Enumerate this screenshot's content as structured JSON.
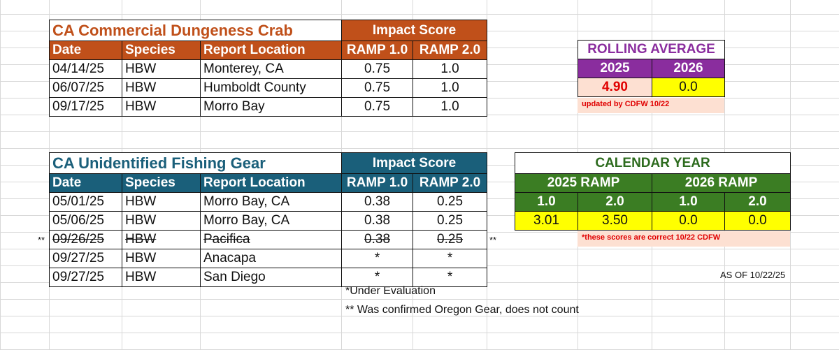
{
  "crab": {
    "title": "CA Commercial Dungeness Crab",
    "impact_label": "Impact Score",
    "headers": [
      "Date",
      "Species",
      "Report Location",
      "RAMP 1.0",
      "RAMP 2.0"
    ],
    "rows": [
      [
        "04/14/25",
        "HBW",
        "Monterey, CA",
        "0.75",
        "1.0"
      ],
      [
        "06/07/25",
        "HBW",
        "Humboldt County",
        "0.75",
        "1.0"
      ],
      [
        "09/17/25",
        "HBW",
        "Morro Bay",
        "0.75",
        "1.0"
      ]
    ]
  },
  "gear": {
    "title": "CA Unidentified Fishing Gear",
    "impact_label": "Impact Score",
    "headers": [
      "Date",
      "Species",
      "Report Location",
      "RAMP 1.0",
      "RAMP 2.0"
    ],
    "rows": [
      [
        "05/01/25",
        "HBW",
        "Morro Bay, CA",
        "0.38",
        "0.25"
      ],
      [
        "05/06/25",
        "HBW",
        "Morro Bay, CA",
        "0.38",
        "0.25"
      ],
      [
        "09/26/25",
        "HBW",
        "Pacifica",
        "0.38",
        "0.25"
      ],
      [
        "09/27/25",
        "HBW",
        "Anacapa",
        "*",
        "*"
      ],
      [
        "09/27/25",
        "HBW",
        "San Diego",
        "*",
        "*"
      ]
    ],
    "struck_marker": "**",
    "under_evaluation": "*Under Evaluation",
    "oregon_note": "** Was confirmed Oregon Gear, does not count"
  },
  "rolling": {
    "title": "ROLLING AVERAGE",
    "years": [
      "2025",
      "2026"
    ],
    "values": [
      "4.90",
      "0.0"
    ],
    "note": "updated by CDFW 10/22"
  },
  "calendar": {
    "title": "CALENDAR YEAR",
    "groups": [
      "2025 RAMP",
      "2026 RAMP"
    ],
    "subheaders": [
      "1.0",
      "2.0",
      "1.0",
      "2.0"
    ],
    "values": [
      "3.01",
      "3.50",
      "0.0",
      "0.0"
    ],
    "note": "*these scores are correct 10/22 CDFW"
  },
  "as_of": "AS OF 10/22/25",
  "colors": {
    "crab_accent": "#c0501a",
    "gear_accent": "#1a5f7a",
    "rolling_accent": "#8a2d9e",
    "calendar_accent": "#3b7d23",
    "highlight": "#ffff00",
    "note_bg": "#fde0d2",
    "note_text": "#e00000"
  }
}
